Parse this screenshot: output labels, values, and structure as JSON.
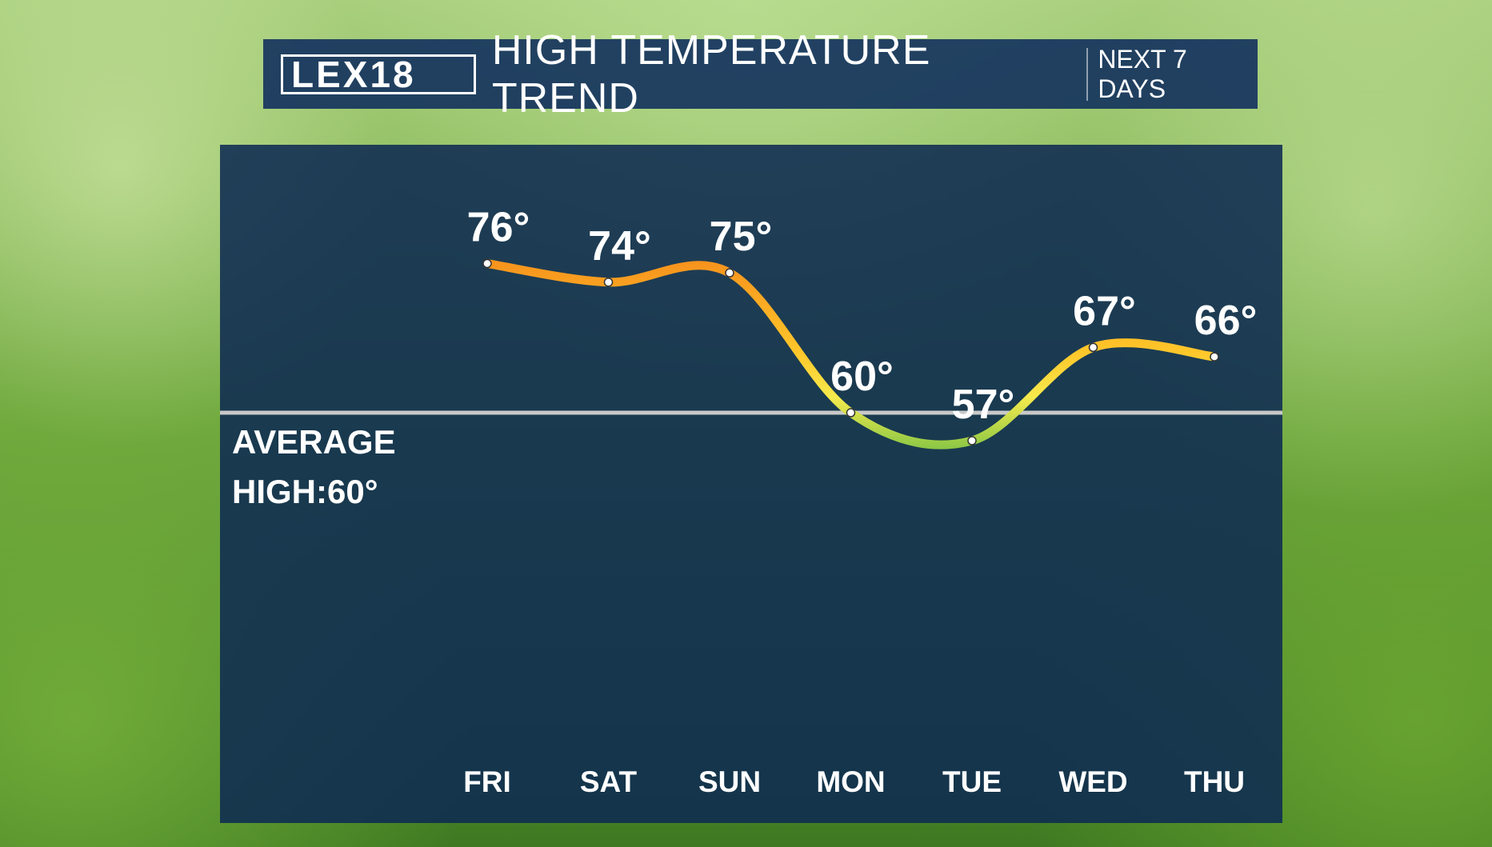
{
  "header": {
    "logo": "LEX18",
    "title": "HIGH TEMPERATURE TREND",
    "subtitle": "NEXT 7 DAYS"
  },
  "chart_data": {
    "type": "line",
    "categories": [
      "FRI",
      "SAT",
      "SUN",
      "MON",
      "TUE",
      "WED",
      "THU"
    ],
    "values": [
      76,
      74,
      75,
      60,
      57,
      67,
      66
    ],
    "value_labels": [
      "76°",
      "74°",
      "75°",
      "60°",
      "57°",
      "67°",
      "66°"
    ],
    "average": 60,
    "average_label": "AVERAGE HIGH:60°",
    "colors": [
      "#f7941d",
      "#ffc62a",
      "#f6ea4c",
      "#74c044"
    ]
  }
}
